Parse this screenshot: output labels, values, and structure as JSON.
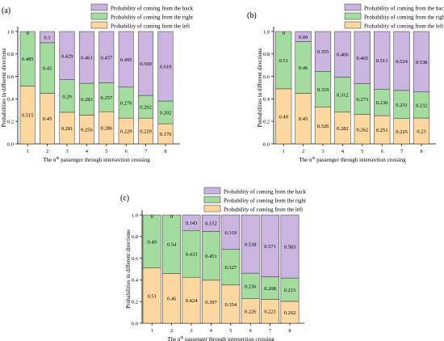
{
  "colors": {
    "left": "#fcd7a0",
    "right": "#a4dca0",
    "back": "#c9b5df",
    "stroke": "#333333"
  },
  "legend": [
    "Probability of coming from the back",
    "Probability of coming from the right",
    "Probability of coming from the left"
  ],
  "chart_data": [
    {
      "panel": "(a)",
      "type": "bar",
      "stacked": true,
      "ylabel": "Probabilities in different directions",
      "xlabel_pre": "The n",
      "xlabel_sup": "th",
      "xlabel_post": " passenger  through intersection crossing",
      "ylim": [
        0,
        1.0
      ],
      "yticks": [
        "0.0",
        "0.2",
        "0.4",
        "0.6",
        "0.8",
        "1.0"
      ],
      "categories": [
        "1",
        "2",
        "3",
        "4",
        "5",
        "6",
        "7",
        "8"
      ],
      "series": [
        {
          "name": "Probability of coming from the left",
          "values": [
            0.515,
            0.45,
            0.281,
            0.256,
            0.286,
            0.229,
            0.229,
            0.179
          ]
        },
        {
          "name": "Probability of coming from the right",
          "values": [
            0.485,
            0.45,
            0.29,
            0.283,
            0.257,
            0.276,
            0.202,
            0.202
          ]
        },
        {
          "name": "Probability of coming from the back",
          "values": [
            0,
            0.1,
            0.429,
            0.461,
            0.457,
            0.495,
            0.569,
            0.619
          ]
        }
      ]
    },
    {
      "panel": "(b)",
      "type": "bar",
      "stacked": true,
      "ylabel": "Probabilities in different directions",
      "xlabel_pre": "The n",
      "xlabel_sup": "th",
      "xlabel_post": " passenger  through intersection crossing",
      "ylim": [
        0,
        1.0
      ],
      "yticks": [
        "0.0",
        "0.2",
        "0.4",
        "0.6",
        "0.8",
        "1.0"
      ],
      "categories": [
        "1",
        "2",
        "3",
        "4",
        "5",
        "6",
        "7",
        "8"
      ],
      "series": [
        {
          "name": "Probability of coming from the left",
          "values": [
            0.49,
            0.45,
            0.326,
            0.282,
            0.262,
            0.251,
            0.225,
            0.23
          ]
        },
        {
          "name": "Probability of coming from the right",
          "values": [
            0.51,
            0.46,
            0.319,
            0.312,
            0.273,
            0.236,
            0.251,
            0.232
          ]
        },
        {
          "name": "Probability of coming from the back",
          "values": [
            0,
            0.09,
            0.355,
            0.406,
            0.465,
            0.513,
            0.524,
            0.538
          ]
        }
      ]
    },
    {
      "panel": "(c)",
      "type": "bar",
      "stacked": true,
      "ylabel": "Probabilities in different directions",
      "xlabel_pre": "The n",
      "xlabel_sup": "th",
      "xlabel_post": " passenger  through intersection crossing",
      "ylim": [
        0,
        1.0
      ],
      "yticks": [
        "0.0",
        "0.2",
        "0.4",
        "0.6",
        "0.8",
        "1.0"
      ],
      "categories": [
        "1",
        "2",
        "3",
        "4",
        "5",
        "6",
        "7",
        "8"
      ],
      "series": [
        {
          "name": "Probability of coming from the left",
          "values": [
            0.51,
            0.46,
            0.424,
            0.397,
            0.354,
            0.226,
            0.221,
            0.202
          ]
        },
        {
          "name": "Probability of coming from the right",
          "values": [
            0.49,
            0.54,
            0.433,
            0.451,
            0.327,
            0.236,
            0.208,
            0.215
          ]
        },
        {
          "name": "Probability of coming from the back",
          "values": [
            0,
            0,
            0.143,
            0.152,
            0.319,
            0.538,
            0.571,
            0.583
          ]
        }
      ]
    }
  ]
}
